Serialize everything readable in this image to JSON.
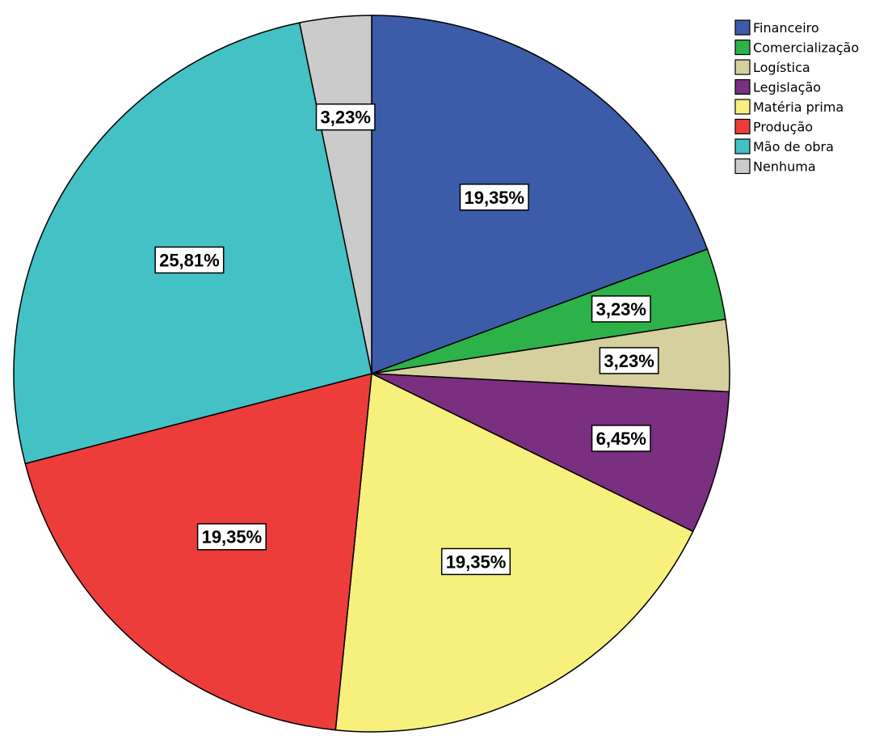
{
  "chart_data": {
    "type": "pie",
    "categories": [
      "Financeiro",
      "Comercialização",
      "Logística",
      "Legislação",
      "Matéria prima",
      "Produção",
      "Mão de obra",
      "Nenhuma"
    ],
    "values": [
      19.35,
      3.23,
      3.23,
      6.45,
      19.35,
      19.35,
      25.81,
      3.23
    ],
    "value_labels": [
      "19,35%",
      "3,23%",
      "3,23%",
      "6,45%",
      "19,35%",
      "19,35%",
      "25,81%",
      "3,23%"
    ],
    "colors": [
      "#3c5ba9",
      "#2db24a",
      "#d6cf9e",
      "#7a2f80",
      "#f8f07c",
      "#ec3d3b",
      "#44c1c4",
      "#cbcbcb"
    ],
    "start_angle_deg": 0,
    "direction": "clockwise",
    "legend_position": "top-right",
    "title": ""
  }
}
